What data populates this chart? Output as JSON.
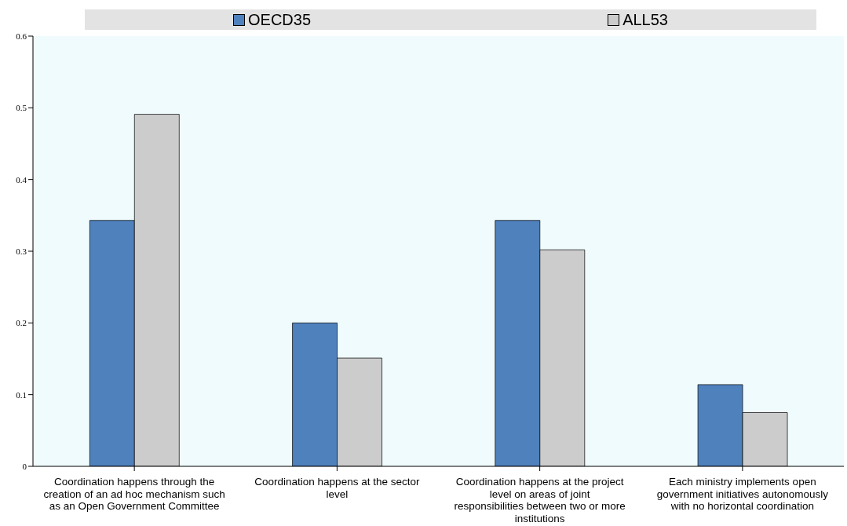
{
  "chart_data": {
    "type": "bar",
    "categories": [
      "Coordination happens through the creation of an ad hoc mechanism such as an Open Government Committee",
      "Coordination happens at the sector level",
      "Coordination happens at the project level on areas of joint responsibilities between two or more institutions",
      "Each ministry implements open government initiatives autonomously with no horizontal coordination"
    ],
    "series": [
      {
        "name": "OECD35",
        "color": "#4f81bd",
        "values": [
          0.343,
          0.2,
          0.343,
          0.114
        ]
      },
      {
        "name": "ALL53",
        "color": "#cccccc",
        "values": [
          0.491,
          0.151,
          0.302,
          0.075
        ]
      }
    ],
    "ylim": [
      0,
      0.6
    ],
    "yticks": [
      0,
      0.1,
      0.2,
      0.3,
      0.4,
      0.5,
      0.6
    ],
    "grid": false,
    "legend": "top"
  }
}
